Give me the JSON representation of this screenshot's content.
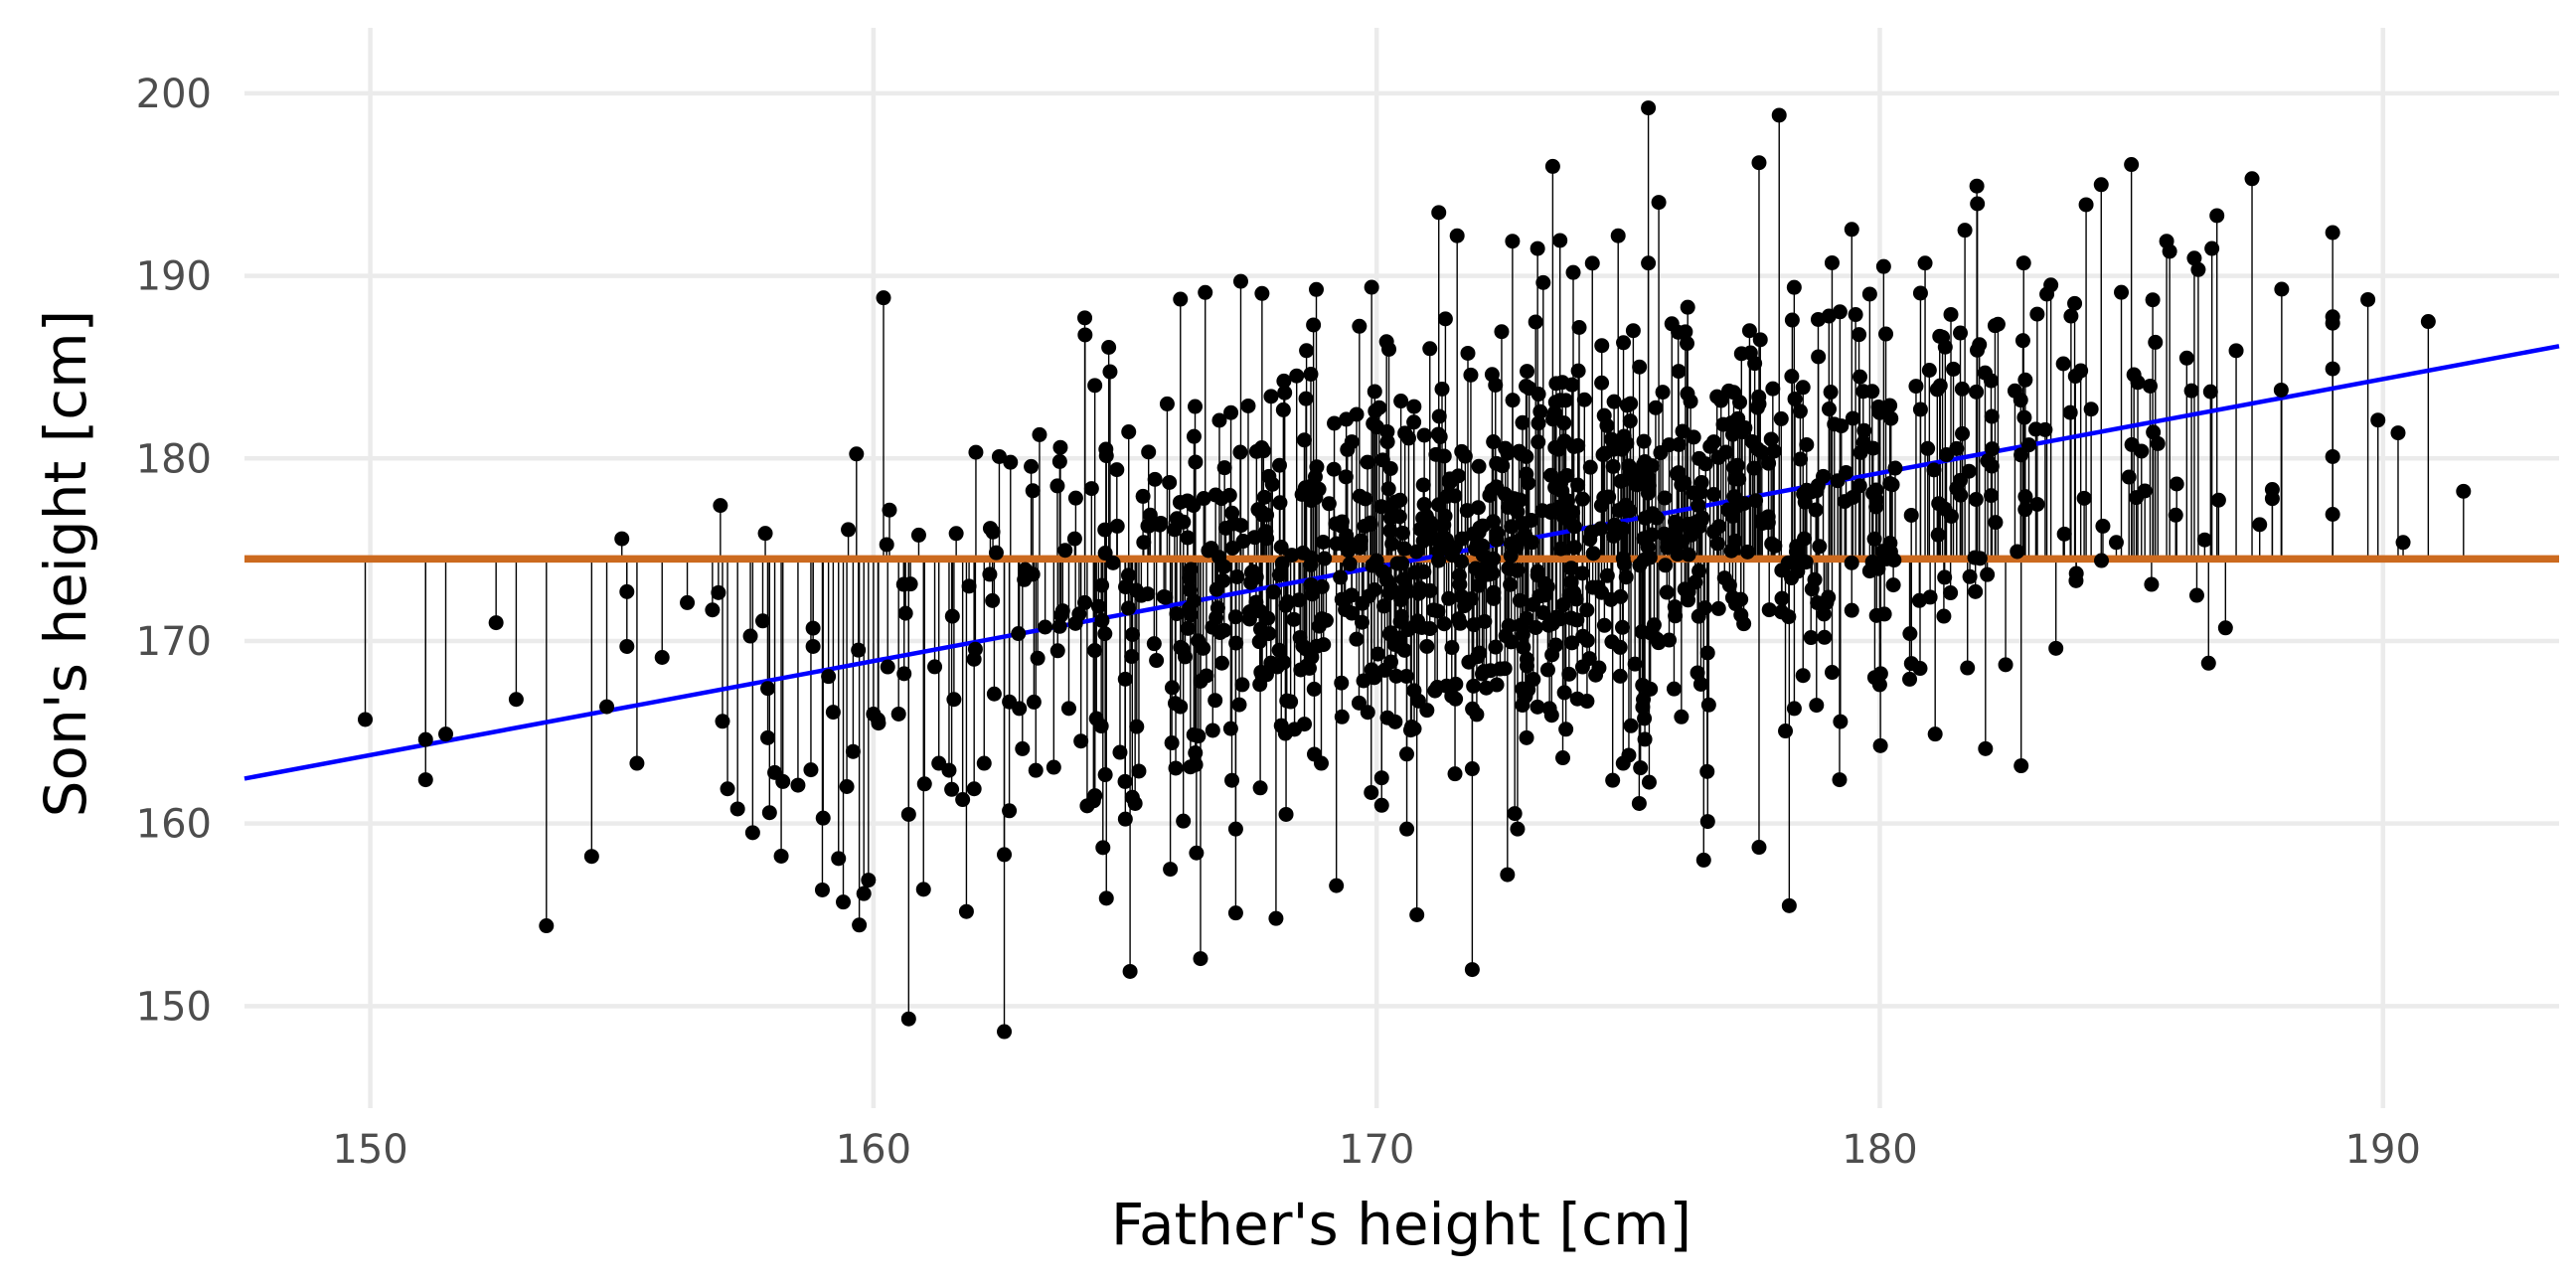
{
  "chart_data": {
    "type": "scatter",
    "title": "",
    "xlabel": "Father's height [cm]",
    "ylabel": "Son's height [cm]",
    "xlim": [
      147.5,
      193.5
    ],
    "ylim": [
      145.5,
      202.5
    ],
    "x_ticks": [
      150,
      160,
      170,
      180,
      190
    ],
    "y_ticks": [
      150,
      160,
      170,
      180,
      190,
      200
    ],
    "x_tick_labels": [
      "150",
      "160",
      "170",
      "180",
      "190"
    ],
    "y_tick_labels": [
      "150",
      "160",
      "170",
      "180",
      "190",
      "200"
    ],
    "grid": true,
    "legend": "none",
    "mean_line": {
      "y": 174.5,
      "color": "#cc6a1f"
    },
    "regression_line": {
      "intercept": 86.5,
      "slope": 0.515,
      "color": "#0000ff"
    },
    "residual_stems": "vertical segments from each point to the mean line",
    "point_color": "#000000",
    "points": [
      [
        149.9,
        165.7
      ],
      [
        151.1,
        164.6
      ],
      [
        151.1,
        162.4
      ],
      [
        151.5,
        164.9
      ],
      [
        152.5,
        171.0
      ],
      [
        152.9,
        166.8
      ],
      [
        153.5,
        154.4
      ],
      [
        154.4,
        158.2
      ],
      [
        154.7,
        166.4
      ],
      [
        155.0,
        175.6
      ],
      [
        155.1,
        172.7
      ],
      [
        155.1,
        169.7
      ],
      [
        155.3,
        163.3
      ],
      [
        155.8,
        169.1
      ],
      [
        156.3,
        172.1
      ],
      [
        156.8,
        171.7
      ],
      [
        157.0,
        165.6
      ],
      [
        157.1,
        161.9
      ],
      [
        157.3,
        160.8
      ],
      [
        157.6,
        159.5
      ],
      [
        157.8,
        171.1
      ],
      [
        157.9,
        164.7
      ],
      [
        157.9,
        167.4
      ],
      [
        158.2,
        162.3
      ],
      [
        158.5,
        162.1
      ],
      [
        158.8,
        169.7
      ],
      [
        158.8,
        170.7
      ],
      [
        159.0,
        160.3
      ],
      [
        159.2,
        166.1
      ],
      [
        159.4,
        155.7
      ],
      [
        159.5,
        176.1
      ],
      [
        159.7,
        169.5
      ],
      [
        159.9,
        156.9
      ],
      [
        160.0,
        166.0
      ],
      [
        160.1,
        165.5
      ],
      [
        160.2,
        188.8
      ],
      [
        160.5,
        166.0
      ],
      [
        160.6,
        173.1
      ],
      [
        160.7,
        160.5
      ],
      [
        160.7,
        149.3
      ],
      [
        160.9,
        175.8
      ],
      [
        161.3,
        163.3
      ],
      [
        161.6,
        166.8
      ],
      [
        161.9,
        173.0
      ],
      [
        162.0,
        169.0
      ],
      [
        162.2,
        163.3
      ],
      [
        162.4,
        167.1
      ],
      [
        162.5,
        180.1
      ],
      [
        162.6,
        158.3
      ],
      [
        162.7,
        160.7
      ],
      [
        162.6,
        148.6
      ],
      [
        162.9,
        166.3
      ],
      [
        163.3,
        181.3
      ],
      [
        163.7,
        170.8
      ],
      [
        164.0,
        175.6
      ],
      [
        164.2,
        172.1
      ],
      [
        164.2,
        187.7
      ],
      [
        164.4,
        184.0
      ],
      [
        164.6,
        170.4
      ],
      [
        164.9,
        163.9
      ],
      [
        165.0,
        162.3
      ],
      [
        165.2,
        161.1
      ],
      [
        165.1,
        151.9
      ],
      [
        165.5,
        176.9
      ],
      [
        165.9,
        157.5
      ],
      [
        166.1,
        166.4
      ],
      [
        166.3,
        163.1
      ],
      [
        166.4,
        179.8
      ],
      [
        166.5,
        152.6
      ],
      [
        166.8,
        178.0
      ],
      [
        167.2,
        159.7
      ],
      [
        167.2,
        155.1
      ],
      [
        167.3,
        189.7
      ],
      [
        167.5,
        173.2
      ],
      [
        167.8,
        176.0
      ],
      [
        168.0,
        154.8
      ],
      [
        168.2,
        160.5
      ],
      [
        168.7,
        177.7
      ],
      [
        168.9,
        163.3
      ],
      [
        169.2,
        156.6
      ],
      [
        169.6,
        170.1
      ],
      [
        170.0,
        174.4
      ],
      [
        170.1,
        162.5
      ],
      [
        170.1,
        161.0
      ],
      [
        170.6,
        159.7
      ],
      [
        170.8,
        155.0
      ],
      [
        171.0,
        169.7
      ],
      [
        171.3,
        183.8
      ],
      [
        171.6,
        192.2
      ],
      [
        171.7,
        175.6
      ],
      [
        171.9,
        163.0
      ],
      [
        171.9,
        152.0
      ],
      [
        172.1,
        168.2
      ],
      [
        172.5,
        179.6
      ],
      [
        172.6,
        157.2
      ],
      [
        172.7,
        191.9
      ],
      [
        172.8,
        159.7
      ],
      [
        173.2,
        173.6
      ],
      [
        173.5,
        196.0
      ],
      [
        173.7,
        163.6
      ],
      [
        174.0,
        180.7
      ],
      [
        174.5,
        180.2
      ],
      [
        174.8,
        192.2
      ],
      [
        174.9,
        163.3
      ],
      [
        175.1,
        187.0
      ],
      [
        175.3,
        166.8
      ],
      [
        175.4,
        190.7
      ],
      [
        175.4,
        199.2
      ],
      [
        175.9,
        175.5
      ],
      [
        176.2,
        172.7
      ],
      [
        176.5,
        158.0
      ],
      [
        176.6,
        166.5
      ],
      [
        177.1,
        179.5
      ],
      [
        177.6,
        158.7
      ],
      [
        177.6,
        196.2
      ],
      [
        177.9,
        180.4
      ],
      [
        178.0,
        198.8
      ],
      [
        178.2,
        155.5
      ],
      [
        178.3,
        166.3
      ],
      [
        178.5,
        175.6
      ],
      [
        178.9,
        170.2
      ],
      [
        179.2,
        162.4
      ],
      [
        179.6,
        178.5
      ],
      [
        179.8,
        189.0
      ],
      [
        179.9,
        168.0
      ],
      [
        180.2,
        182.9
      ],
      [
        180.6,
        170.4
      ],
      [
        180.8,
        168.5
      ],
      [
        180.9,
        190.7
      ],
      [
        181.0,
        172.4
      ],
      [
        181.1,
        164.9
      ],
      [
        181.3,
        186.1
      ],
      [
        181.6,
        178.8
      ],
      [
        181.9,
        172.7
      ],
      [
        182.1,
        164.1
      ],
      [
        182.3,
        176.5
      ],
      [
        182.5,
        168.7
      ],
      [
        182.8,
        183.2
      ],
      [
        183.1,
        181.6
      ],
      [
        183.4,
        189.5
      ],
      [
        183.5,
        169.6
      ],
      [
        183.8,
        187.8
      ],
      [
        183.9,
        173.3
      ],
      [
        184.1,
        193.9
      ],
      [
        184.2,
        182.7
      ],
      [
        184.4,
        195.0
      ],
      [
        184.7,
        175.4
      ],
      [
        184.8,
        189.1
      ],
      [
        185.0,
        196.1
      ],
      [
        185.2,
        180.4
      ],
      [
        185.4,
        173.1
      ],
      [
        185.7,
        191.9
      ],
      [
        185.9,
        178.6
      ],
      [
        186.1,
        185.5
      ],
      [
        186.3,
        172.5
      ],
      [
        186.6,
        191.5
      ],
      [
        186.7,
        193.3
      ],
      [
        187.8,
        178.3
      ],
      [
        187.8,
        177.8
      ],
      [
        189.0,
        180.1
      ],
      [
        189.7,
        188.7
      ],
      [
        189.9,
        182.1
      ],
      [
        190.3,
        181.4
      ],
      [
        190.4,
        175.4
      ],
      [
        190.9,
        187.5
      ],
      [
        191.6,
        178.2
      ]
    ],
    "scatter_fill": {
      "count": 1050,
      "x_mean": 172.6,
      "x_sd": 6.0,
      "y_mean": 175.4,
      "y_sd": 6.8,
      "correlation": 0.46
    }
  }
}
